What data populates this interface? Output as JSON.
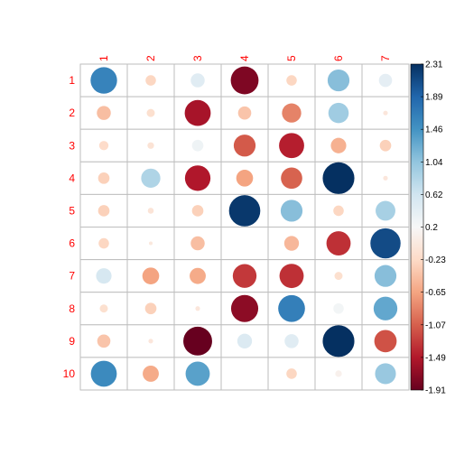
{
  "chart_data": {
    "type": "heatmap",
    "title": "",
    "row_labels": [
      "1",
      "2",
      "3",
      "4",
      "5",
      "6",
      "7",
      "8",
      "9",
      "10"
    ],
    "col_labels": [
      "1",
      "2",
      "3",
      "4",
      "5",
      "6",
      "7"
    ],
    "values": [
      [
        1.62,
        -0.25,
        0.45,
        -1.78,
        -0.25,
        1.1,
        0.4
      ],
      [
        -0.45,
        -0.15,
        -1.55,
        -0.4,
        -0.85,
        0.95,
        -0.05
      ],
      [
        -0.2,
        -0.1,
        0.3,
        -1.1,
        -1.45,
        -0.55,
        -0.3
      ],
      [
        -0.3,
        0.85,
        -1.5,
        -0.65,
        -1.05,
        2.31,
        -0.05
      ],
      [
        -0.3,
        -0.08,
        -0.3,
        2.25,
        1.1,
        -0.25,
        0.9
      ],
      [
        -0.25,
        -0.03,
        -0.45,
        null,
        -0.5,
        -1.35,
        2.1
      ],
      [
        0.55,
        -0.65,
        -0.6,
        -1.3,
        -1.35,
        -0.15,
        1.1
      ],
      [
        -0.15,
        -0.3,
        -0.05,
        -1.7,
        1.65,
        0.25,
        1.3
      ],
      [
        -0.4,
        -0.05,
        -1.91,
        0.5,
        0.45,
        2.31,
        -1.15
      ],
      [
        1.55,
        -0.6,
        1.35,
        null,
        -0.25,
        0.1,
        1.0
      ]
    ],
    "colorbar": {
      "min": -1.91,
      "max": 2.31,
      "ticks": [
        "2.31",
        "1.89",
        "1.46",
        "1.04",
        "0.62",
        "0.2",
        "-0.23",
        "-0.65",
        "-1.07",
        "-1.49",
        "-1.91"
      ]
    },
    "colors": {
      "low": "#67001f",
      "mid": "#f7f7f7",
      "high": "#053061",
      "grid": "#bebebe",
      "label": "#ff0000"
    }
  }
}
